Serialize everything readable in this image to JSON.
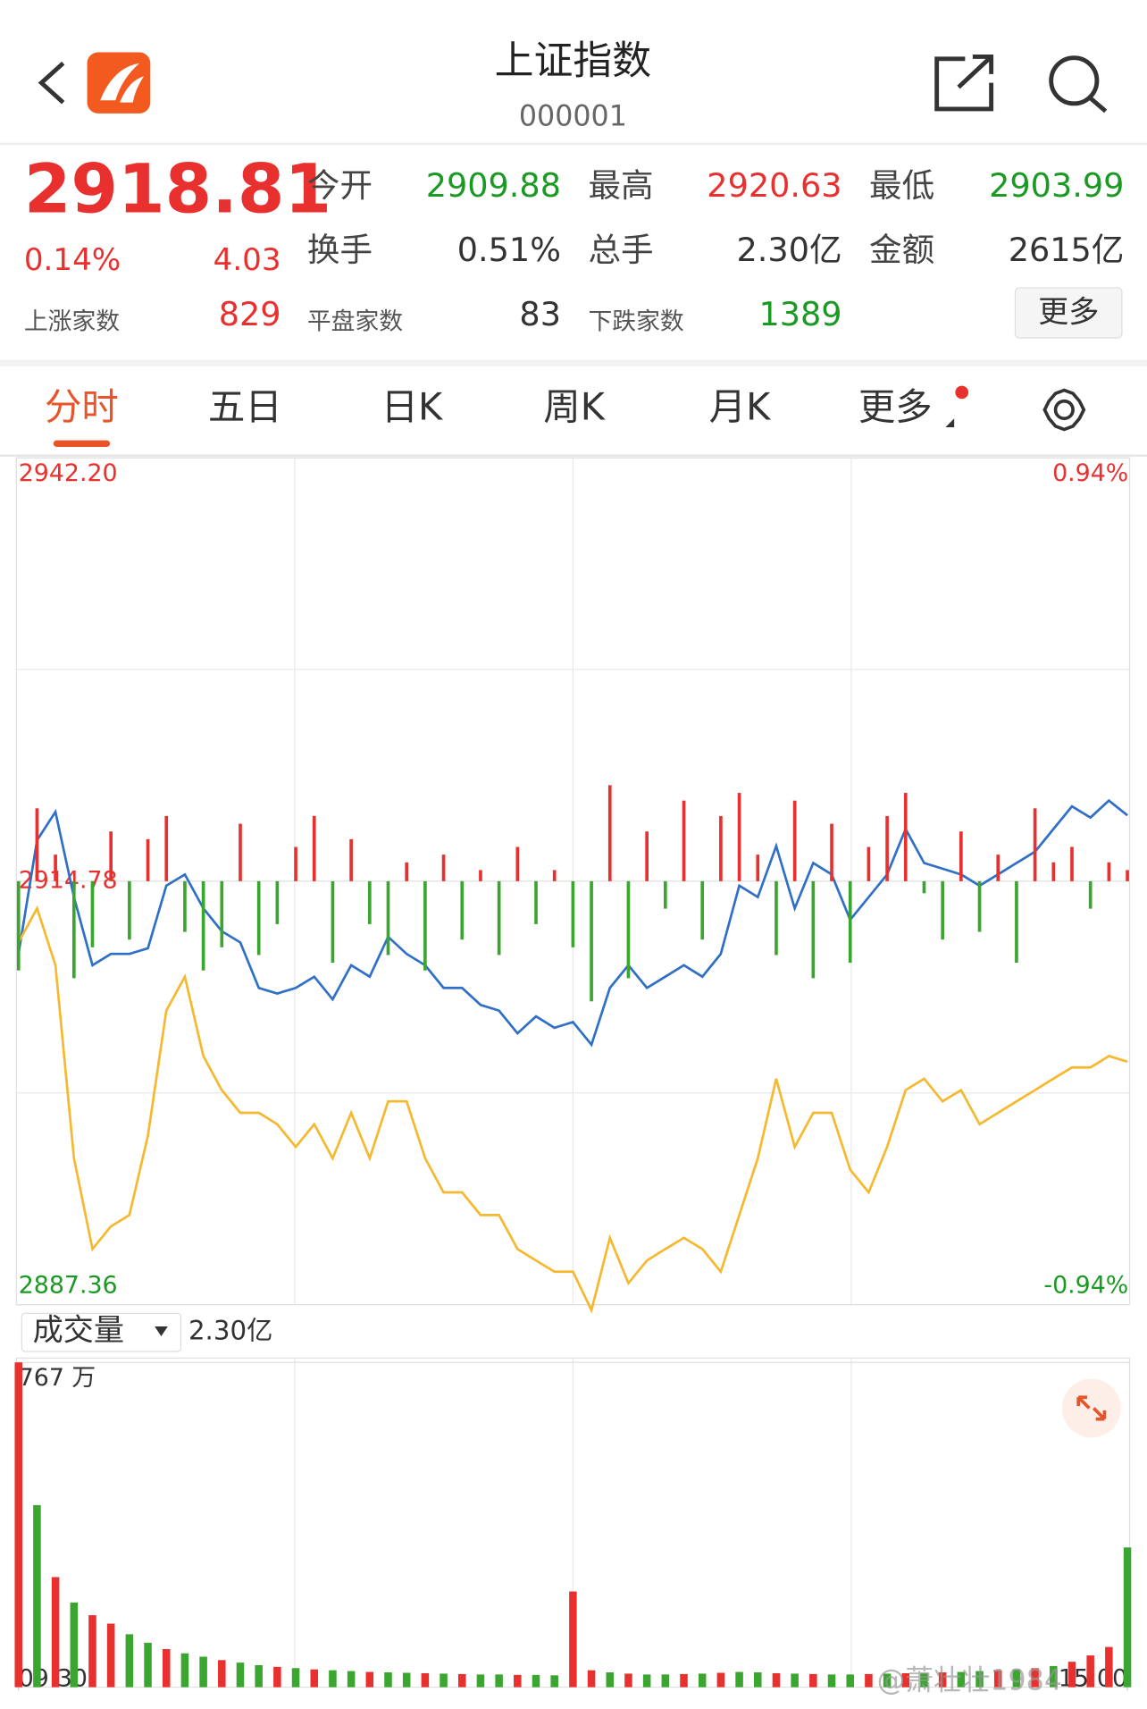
{
  "header": {
    "title": "上证指数",
    "code": "000001"
  },
  "quote": {
    "price": "2918.81",
    "change_pct": "0.14%",
    "change": "4.03",
    "color": "#e8312f",
    "stats": [
      [
        {
          "label": "今开",
          "value": "2909.88",
          "color": "#1a9a23"
        },
        {
          "label": "最高",
          "value": "2920.63",
          "color": "#e8312f"
        },
        {
          "label": "最低",
          "value": "2903.99",
          "color": "#1a9a23"
        }
      ],
      [
        {
          "label": "换手",
          "value": "0.51%",
          "color": "#333333"
        },
        {
          "label": "总手",
          "value": "2.30亿",
          "color": "#333333"
        },
        {
          "label": "金额",
          "value": "2615亿",
          "color": "#333333"
        }
      ]
    ],
    "breadth": [
      {
        "label": "上涨家数",
        "value": "829",
        "color": "#e8312f"
      },
      {
        "label": "平盘家数",
        "value": "83",
        "color": "#333333"
      },
      {
        "label": "下跌家数",
        "value": "1389",
        "color": "#1a9a23"
      }
    ],
    "more_button": "更多"
  },
  "tabs": [
    "分时",
    "五日",
    "日K",
    "周K",
    "月K",
    "更多"
  ],
  "volume_header": {
    "label": "成交量",
    "total": "2.30亿"
  },
  "watermark": "@萧壮壮1984",
  "chart_data": [
    {
      "type": "line",
      "x": [
        0,
        4,
        8,
        12,
        16,
        20,
        24,
        28,
        32,
        36,
        40,
        44,
        48,
        52,
        56,
        60,
        64,
        68,
        72,
        76,
        80,
        84,
        88,
        92,
        96,
        100,
        104,
        108,
        112,
        116,
        120,
        124,
        128,
        132,
        136,
        140,
        144,
        148,
        152,
        156,
        160,
        164,
        168,
        172,
        176,
        180,
        184,
        188,
        192,
        196,
        200,
        204,
        208,
        212,
        216,
        220,
        224,
        228,
        232,
        236,
        240
      ],
      "xlim": [
        0,
        240
      ],
      "ylim": [
        2887.36,
        2942.2
      ],
      "yticks": [
        {
          "value": 2942.2,
          "label": "2942.20"
        },
        2914.78,
        {
          "value": 2887.36,
          "label": "2887.36"
        }
      ],
      "y2lim": [
        -0.94,
        0.94
      ],
      "y2ticks": [
        {
          "value": 0.94,
          "label": "0.94%"
        },
        {
          "value": -0.94,
          "label": "-0.94%"
        }
      ],
      "series": [
        {
          "type": "line",
          "color": "#2f6fc6",
          "values": [
            2910.07,
            2917.43,
            2919.27,
            2913.75,
            2909.34,
            2910.07,
            2910.07,
            2910.44,
            2914.49,
            2915.22,
            2913.02,
            2911.54,
            2910.81,
            2907.87,
            2907.5,
            2907.87,
            2908.6,
            2907.13,
            2909.34,
            2908.6,
            2911.18,
            2910.07,
            2909.34,
            2907.87,
            2907.87,
            2906.77,
            2906.4,
            2904.93,
            2906.03,
            2905.29,
            2905.66,
            2904.19,
            2907.87,
            2909.34,
            2907.87,
            2908.6,
            2909.34,
            2908.6,
            2910.07,
            2914.49,
            2913.75,
            2917.06,
            2913.02,
            2915.96,
            2915.22,
            2912.28,
            2913.75,
            2915.22,
            2918.16,
            2915.96,
            2915.59,
            2915.22,
            2914.49,
            2915.22,
            2915.96,
            2916.69,
            2918.16,
            2919.63,
            2918.9,
            2920.0,
            2919.04
          ]
        },
        {
          "type": "line",
          "color": "#f5b82e",
          "values": [
            2910.81,
            2913.02,
            2909.34,
            2896.84,
            2890.96,
            2892.43,
            2893.16,
            2898.31,
            2906.4,
            2908.6,
            2903.46,
            2901.25,
            2899.78,
            2899.78,
            2899.04,
            2897.57,
            2899.04,
            2896.84,
            2899.78,
            2896.84,
            2900.52,
            2900.52,
            2896.84,
            2894.63,
            2894.63,
            2893.16,
            2893.16,
            2890.96,
            2890.22,
            2889.49,
            2889.49,
            2887.0,
            2891.69,
            2888.75,
            2890.22,
            2890.96,
            2891.69,
            2890.96,
            2889.49,
            2893.16,
            2896.84,
            2901.99,
            2897.57,
            2899.78,
            2899.78,
            2896.1,
            2894.63,
            2897.57,
            2901.25,
            2901.99,
            2900.52,
            2901.25,
            2899.04,
            2899.78,
            2900.52,
            2901.25,
            2901.99,
            2902.72,
            2902.72,
            2903.46,
            2903.09
          ]
        },
        {
          "type": "bar",
          "up_color": "#e8312f",
          "down_color": "#3aa52f",
          "values": [
            2909.0,
            2919.5,
            2916.5,
            2908.5,
            2910.5,
            2918.0,
            2911.0,
            2917.5,
            2919.0,
            2911.5,
            2909.0,
            2910.5,
            2918.5,
            2910.0,
            2912.0,
            2917.0,
            2919.0,
            2909.5,
            2917.5,
            2912.0,
            2910.0,
            2916.0,
            2909.0,
            2916.5,
            2911.0,
            2915.5,
            2910.0,
            2917.0,
            2912.0,
            2915.5,
            2910.5,
            2907.0,
            2921.0,
            2908.5,
            2918.0,
            2913.0,
            2920.0,
            2911.0,
            2919.0,
            2920.5,
            2916.5,
            2910.0,
            2920.0,
            2908.5,
            2918.5,
            2909.5,
            2917.0,
            2919.0,
            2920.5,
            2914.0,
            2911.0,
            2918.0,
            2911.5,
            2916.5,
            2909.5,
            2919.5,
            2916.0,
            2917.0,
            2913.0,
            2916.0,
            2915.5
          ]
        }
      ]
    },
    {
      "type": "bar",
      "x": [
        0,
        4,
        8,
        12,
        16,
        20,
        24,
        28,
        32,
        36,
        40,
        44,
        48,
        52,
        56,
        60,
        64,
        68,
        72,
        76,
        80,
        84,
        88,
        92,
        96,
        100,
        104,
        108,
        112,
        116,
        120,
        124,
        128,
        132,
        136,
        140,
        144,
        148,
        152,
        156,
        160,
        164,
        168,
        172,
        176,
        180,
        184,
        188,
        192,
        196,
        200,
        204,
        208,
        212,
        216,
        220,
        224,
        228,
        232,
        236,
        240
      ],
      "xlim": [
        0,
        240
      ],
      "xticks": [
        {
          "value": 0,
          "label": "09:30"
        },
        {
          "value": 240,
          "label": "15:00"
        }
      ],
      "ylim": [
        0,
        767
      ],
      "yticks": [
        {
          "value": 767,
          "label": "767 万"
        }
      ],
      "series": [
        {
          "color": "#e8312f",
          "values": [
            767,
            null,
            260,
            null,
            170,
            150,
            null,
            null,
            90,
            null,
            null,
            64,
            null,
            null,
            48,
            null,
            42,
            null,
            null,
            36,
            null,
            null,
            33,
            null,
            31,
            null,
            null,
            29,
            null,
            null,
            226,
            40,
            null,
            32,
            null,
            null,
            31,
            null,
            34,
            null,
            null,
            33,
            null,
            31,
            null,
            null,
            31,
            null,
            33,
            null,
            35,
            null,
            null,
            40,
            null,
            45,
            null,
            60,
            75,
            95,
            null
          ]
        },
        {
          "color": "#3aa52f",
          "values": [
            null,
            430,
            null,
            200,
            null,
            null,
            125,
            105,
            null,
            80,
            72,
            null,
            58,
            52,
            null,
            45,
            null,
            40,
            38,
            null,
            35,
            34,
            null,
            32,
            null,
            30,
            30,
            null,
            29,
            28,
            null,
            null,
            35,
            null,
            30,
            30,
            null,
            32,
            null,
            36,
            35,
            null,
            32,
            null,
            30,
            30,
            null,
            32,
            null,
            34,
            null,
            36,
            38,
            null,
            42,
            null,
            50,
            null,
            null,
            null,
            330
          ]
        }
      ]
    }
  ]
}
